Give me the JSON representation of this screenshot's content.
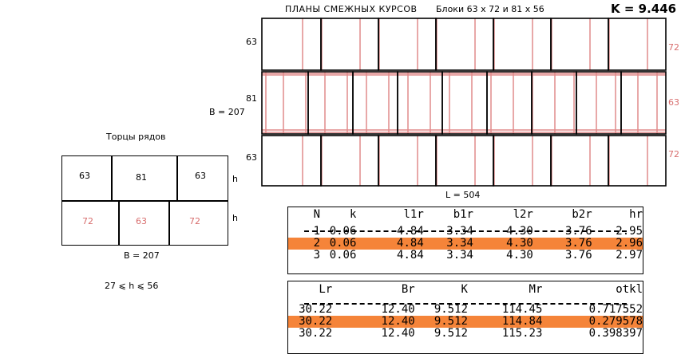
{
  "header": {
    "title": "ПЛАНЫ СМЕЖНЫХ КУРСОВ",
    "blocks": "Блоки 63 x 72  и  81 x 56",
    "k_value": "K = 9.446"
  },
  "plan": {
    "left_labels": [
      "63",
      "81",
      "63"
    ],
    "right_labels": [
      "72",
      "63",
      "72"
    ],
    "width_label": "B = 207",
    "length_label": "L = 504"
  },
  "ends": {
    "title": "Торцы рядов",
    "row1": [
      "63",
      "81",
      "63"
    ],
    "row2": [
      "72",
      "63",
      "72"
    ],
    "h_label": "h",
    "width_label": "B = 207",
    "constraint": "27  ⩽  h  ⩽  56"
  },
  "table1": {
    "headers": [
      "N",
      "k",
      "l1r",
      "b1r",
      "l2r",
      "b2r",
      "hr"
    ],
    "rows": [
      [
        "1",
        "0.06",
        "4.84",
        "3.34",
        "4.30",
        "3.76",
        "2.95"
      ],
      [
        "2",
        "0.06",
        "4.84",
        "3.34",
        "4.30",
        "3.76",
        "2.96"
      ],
      [
        "3",
        "0.06",
        "4.84",
        "3.34",
        "4.30",
        "3.76",
        "2.97"
      ]
    ]
  },
  "table2": {
    "headers": [
      "Lr",
      "Br",
      "K",
      "Mr",
      "otkl"
    ],
    "rows": [
      [
        "30.22",
        "12.40",
        "9.512",
        "114.45",
        "0.717552"
      ],
      [
        "30.22",
        "12.40",
        "9.512",
        "114.84",
        "0.279578"
      ],
      [
        "30.22",
        "12.40",
        "9.512",
        "115.23",
        "0.398397"
      ]
    ]
  },
  "colors": {
    "highlight": "#f58439",
    "red_lines": "#e08a8a"
  }
}
